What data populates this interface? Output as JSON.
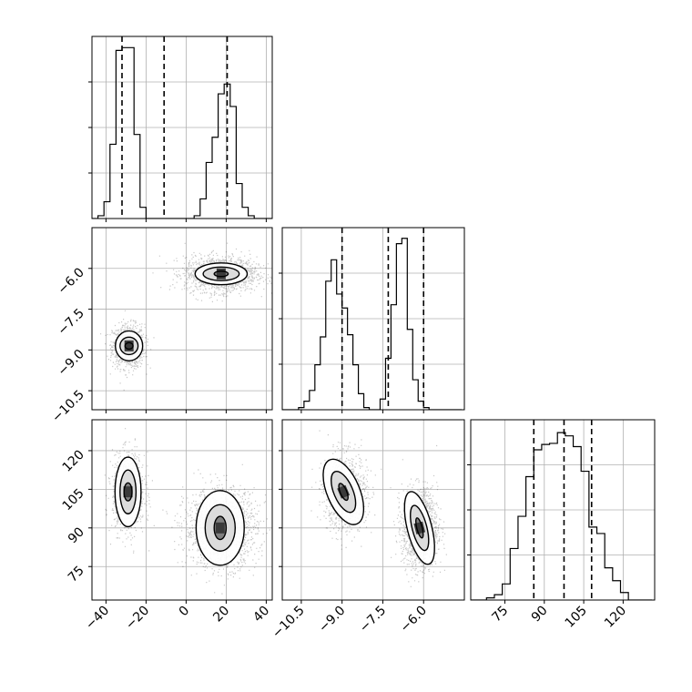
{
  "chart_data": {
    "type": "corner",
    "title": "",
    "grid": true,
    "legend": "none",
    "variables": [
      {
        "id": "p0",
        "range": [
          -47,
          43
        ],
        "ticks": [
          -40,
          -20,
          0,
          20,
          40
        ],
        "tick_labels": [
          "−40",
          "−20",
          "0",
          "20",
          "40"
        ]
      },
      {
        "id": "p1",
        "range": [
          -11.2,
          -4.5
        ],
        "ticks": [
          -10.5,
          -9.0,
          -7.5,
          -6.0
        ],
        "tick_labels": [
          "−10.5",
          "−9.0",
          "−7.5",
          "−6.0"
        ]
      },
      {
        "id": "p2",
        "range": [
          62,
          132
        ],
        "ticks": [
          75,
          90,
          105,
          120
        ],
        "tick_labels": [
          "75",
          "90",
          "105",
          "120"
        ]
      }
    ],
    "histograms": [
      {
        "variable": "p0",
        "bin_edges": [
          -47,
          -44,
          -41,
          -38,
          -35,
          -32,
          -29,
          -26,
          -23,
          -20,
          -17,
          -14,
          -11,
          -8,
          -5,
          -2,
          1,
          4,
          7,
          10,
          13,
          16,
          19,
          22,
          25,
          28,
          31,
          34,
          37,
          40,
          43
        ],
        "counts": [
          0,
          2,
          12,
          53,
          120,
          122,
          122,
          60,
          8,
          0,
          0,
          0,
          0,
          0,
          0,
          0,
          0,
          2,
          14,
          40,
          58,
          89,
          96,
          80,
          25,
          8,
          2,
          0,
          0,
          0
        ],
        "ymax": 130,
        "quantiles": [
          -32,
          -11,
          20.5
        ]
      },
      {
        "variable": "p1",
        "bin_edges": [
          -11.2,
          -11.0,
          -10.8,
          -10.6,
          -10.4,
          -10.2,
          -10.0,
          -9.8,
          -9.6,
          -9.4,
          -9.2,
          -9.0,
          -8.8,
          -8.6,
          -8.4,
          -8.2,
          -8.0,
          -7.8,
          -7.6,
          -7.4,
          -7.2,
          -7.0,
          -6.8,
          -6.6,
          -6.4,
          -6.2,
          -6.0,
          -5.8,
          -5.6,
          -5.4,
          -5.2,
          -5.0,
          -4.8,
          -4.6
        ],
        "counts": [
          0,
          0,
          0,
          2,
          8,
          18,
          42,
          68,
          120,
          140,
          108,
          95,
          70,
          42,
          15,
          2,
          0,
          0,
          10,
          48,
          98,
          155,
          160,
          75,
          28,
          8,
          2,
          0,
          0,
          0,
          0,
          0,
          0
        ],
        "ymax": 170,
        "quantiles": [
          -9.0,
          -7.3,
          -6.0
        ]
      },
      {
        "variable": "p2",
        "bin_edges": [
          62,
          65,
          68,
          71,
          74,
          77,
          80,
          83,
          86,
          89,
          92,
          95,
          98,
          101,
          104,
          107,
          110,
          113,
          116,
          119,
          122,
          125,
          128,
          131
        ],
        "counts": [
          0,
          0,
          2,
          5,
          15,
          48,
          78,
          115,
          140,
          145,
          146,
          156,
          153,
          143,
          120,
          68,
          62,
          30,
          18,
          7,
          0,
          0,
          0
        ],
        "ymax": 168,
        "quantiles": [
          86,
          97.5,
          108
        ]
      }
    ],
    "joint_panels": [
      {
        "x": "p0",
        "y": "p1",
        "modes": [
          {
            "mean": [
              -29,
              -8.85
            ],
            "sd": [
              4.0,
              0.4
            ],
            "n": 950
          },
          {
            "mean": [
              17,
              -6.2
            ],
            "sd": [
              9.0,
              0.32
            ],
            "n": 1500
          }
        ],
        "contours": [
          {
            "center": [
              -28.5,
              -8.85
            ],
            "radii": [
              [
                2,
                0.12
              ],
              [
                4.5,
                0.32
              ],
              [
                6.8,
                0.55
              ]
            ]
          },
          {
            "center": [
              17.5,
              -6.2
            ],
            "radii": [
              [
                3.5,
                0.1
              ],
              [
                9,
                0.25
              ],
              [
                13,
                0.4
              ]
            ]
          }
        ]
      },
      {
        "x": "p0",
        "y": "p2",
        "modes": [
          {
            "mean": [
              -29,
              104
            ],
            "sd": [
              4.0,
              7.5
            ],
            "n": 950
          },
          {
            "mean": [
              17,
              90
            ],
            "sd": [
              9.0,
              7.5
            ],
            "n": 1500
          }
        ],
        "contours": [
          {
            "center": [
              -29,
              104
            ],
            "radii": [
              [
                2,
                3.5
              ],
              [
                4,
                8.5
              ],
              [
                6.5,
                13.5
              ]
            ]
          },
          {
            "center": [
              17,
              90
            ],
            "radii": [
              [
                3,
                4.5
              ],
              [
                7.5,
                9
              ],
              [
                12,
                14.5
              ]
            ]
          }
        ]
      },
      {
        "x": "p1",
        "y": "p2",
        "modes": [
          {
            "mean": [
              -8.9,
              104
            ],
            "sd": [
              0.4,
              7.5
            ],
            "n": 950
          },
          {
            "mean": [
              -6.15,
              90
            ],
            "sd": [
              0.32,
              7.5
            ],
            "n": 1500
          }
        ],
        "contours": [
          {
            "center": [
              -8.95,
              104
            ],
            "radii": [
              [
                0.12,
                3.5
              ],
              [
                0.35,
                8.5
              ],
              [
                0.6,
                13.5
              ]
            ],
            "tilt": -0.4
          },
          {
            "center": [
              -6.15,
              90
            ],
            "radii": [
              [
                0.1,
                4
              ],
              [
                0.27,
                9
              ],
              [
                0.45,
                14.5
              ]
            ],
            "tilt": -0.25
          }
        ]
      }
    ],
    "colors": {
      "line": "#000000",
      "grid": "#b0b0b0",
      "points": "#000000",
      "fill_levels": [
        "#ffffff",
        "#d6d6d6",
        "#a8a8a8",
        "#6f6f6f",
        "#3a3a3a"
      ]
    }
  }
}
